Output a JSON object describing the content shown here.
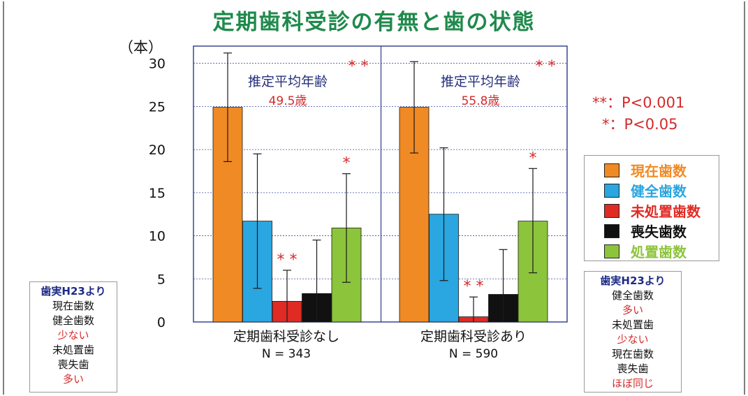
{
  "title": "定期歯科受診の有無と歯の状態",
  "unit_label": "（本）",
  "significance_notes": [
    "**：P<0.001",
    "*：P<0.05"
  ],
  "colors": {
    "現在歯数": "#f08a24",
    "健全歯数": "#2aa6e0",
    "未処置歯数": "#e02a24",
    "喪失歯数": "#111111",
    "処置歯数": "#8cc43c"
  },
  "groups_info": [
    {
      "label": "定期歯科受診なし",
      "n": "N = 343",
      "age_title": "推定平均年齢",
      "age_value": "49.5歳",
      "age_sig": "**"
    },
    {
      "label": "定期歯科受診あり",
      "n": "N = 590",
      "age_title": "推定平均年齢",
      "age_value": "55.8歳",
      "age_sig": "**"
    }
  ],
  "chart_data": {
    "type": "bar",
    "categories": [
      "定期歯科受診なし",
      "定期歯科受診あり"
    ],
    "series": [
      {
        "name": "現在歯数",
        "values": [
          24.9,
          24.9
        ],
        "error_low": [
          18.6,
          19.6
        ],
        "error_high": [
          31.2,
          30.2
        ],
        "sig": [
          "",
          ""
        ]
      },
      {
        "name": "健全歯数",
        "values": [
          11.7,
          12.5
        ],
        "error_low": [
          3.9,
          4.8
        ],
        "error_high": [
          19.5,
          20.2
        ],
        "sig": [
          "",
          ""
        ]
      },
      {
        "name": "未処置歯数",
        "values": [
          2.4,
          0.6
        ],
        "error_low": [
          0,
          0
        ],
        "error_high": [
          6.0,
          2.9
        ],
        "sig": [
          "**",
          "**"
        ]
      },
      {
        "name": "喪失歯数",
        "values": [
          3.3,
          3.2
        ],
        "error_low": [
          0,
          0
        ],
        "error_high": [
          9.5,
          8.4
        ],
        "sig": [
          "",
          ""
        ]
      },
      {
        "name": "処置歯数",
        "values": [
          10.9,
          11.7
        ],
        "error_low": [
          4.6,
          5.7
        ],
        "error_high": [
          17.2,
          17.8
        ],
        "sig": [
          "*",
          "*"
        ]
      }
    ],
    "ylim": [
      0,
      32
    ],
    "yticks": [
      0,
      5,
      10,
      15,
      20,
      25,
      30
    ],
    "grid": true,
    "legend_position": "right"
  },
  "notes": [
    {
      "header": "歯実H23より",
      "lines": [
        {
          "t": "現在歯数",
          "c": "k"
        },
        {
          "t": "健全歯数",
          "c": "k"
        },
        {
          "t": "少ない",
          "c": "r"
        },
        {
          "t": "未処置歯",
          "c": "k"
        },
        {
          "t": "喪失歯",
          "c": "k"
        },
        {
          "t": "多い",
          "c": "r"
        }
      ]
    },
    {
      "header": "歯実H23より",
      "lines": [
        {
          "t": "健全歯数",
          "c": "k"
        },
        {
          "t": "多い",
          "c": "r"
        },
        {
          "t": "未処置歯",
          "c": "k"
        },
        {
          "t": "少ない",
          "c": "r"
        },
        {
          "t": "現在歯数",
          "c": "k"
        },
        {
          "t": "喪失歯",
          "c": "k"
        },
        {
          "t": "ほぼ同じ",
          "c": "r"
        }
      ]
    }
  ]
}
